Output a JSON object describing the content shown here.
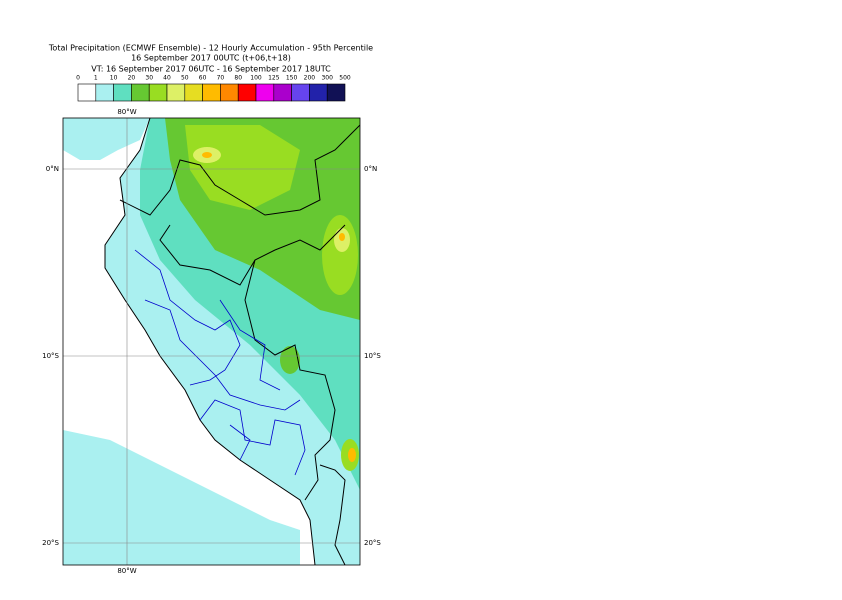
{
  "header": {
    "title": "Total Precipitation (ECMWF Ensemble) - 12 Hourly Accumulation - 95th Percentile",
    "base_time": "16 September 2017 00UTC (t+06,t+18)",
    "valid_time": "VT: 16 September 2017 06UTC - 16 September 2017 18UTC"
  },
  "legend": {
    "labels": [
      "0",
      "1",
      "10",
      "20",
      "30",
      "40",
      "50",
      "60",
      "70",
      "80",
      "100",
      "125",
      "150",
      "200",
      "300",
      "500"
    ],
    "colors": [
      "#ffffff",
      "#aaf0f0",
      "#5fdfc0",
      "#66c832",
      "#99dd22",
      "#ddf066",
      "#e6dd22",
      "#ffbb00",
      "#ff8800",
      "#ff0000",
      "#ee00ee",
      "#aa00cc",
      "#6644ee",
      "#2222aa",
      "#111155"
    ]
  },
  "map": {
    "lon_label_top": "80°W",
    "lon_label_bottom": "80°W",
    "lat_labels": [
      "0°N",
      "10°S",
      "20°S"
    ]
  }
}
